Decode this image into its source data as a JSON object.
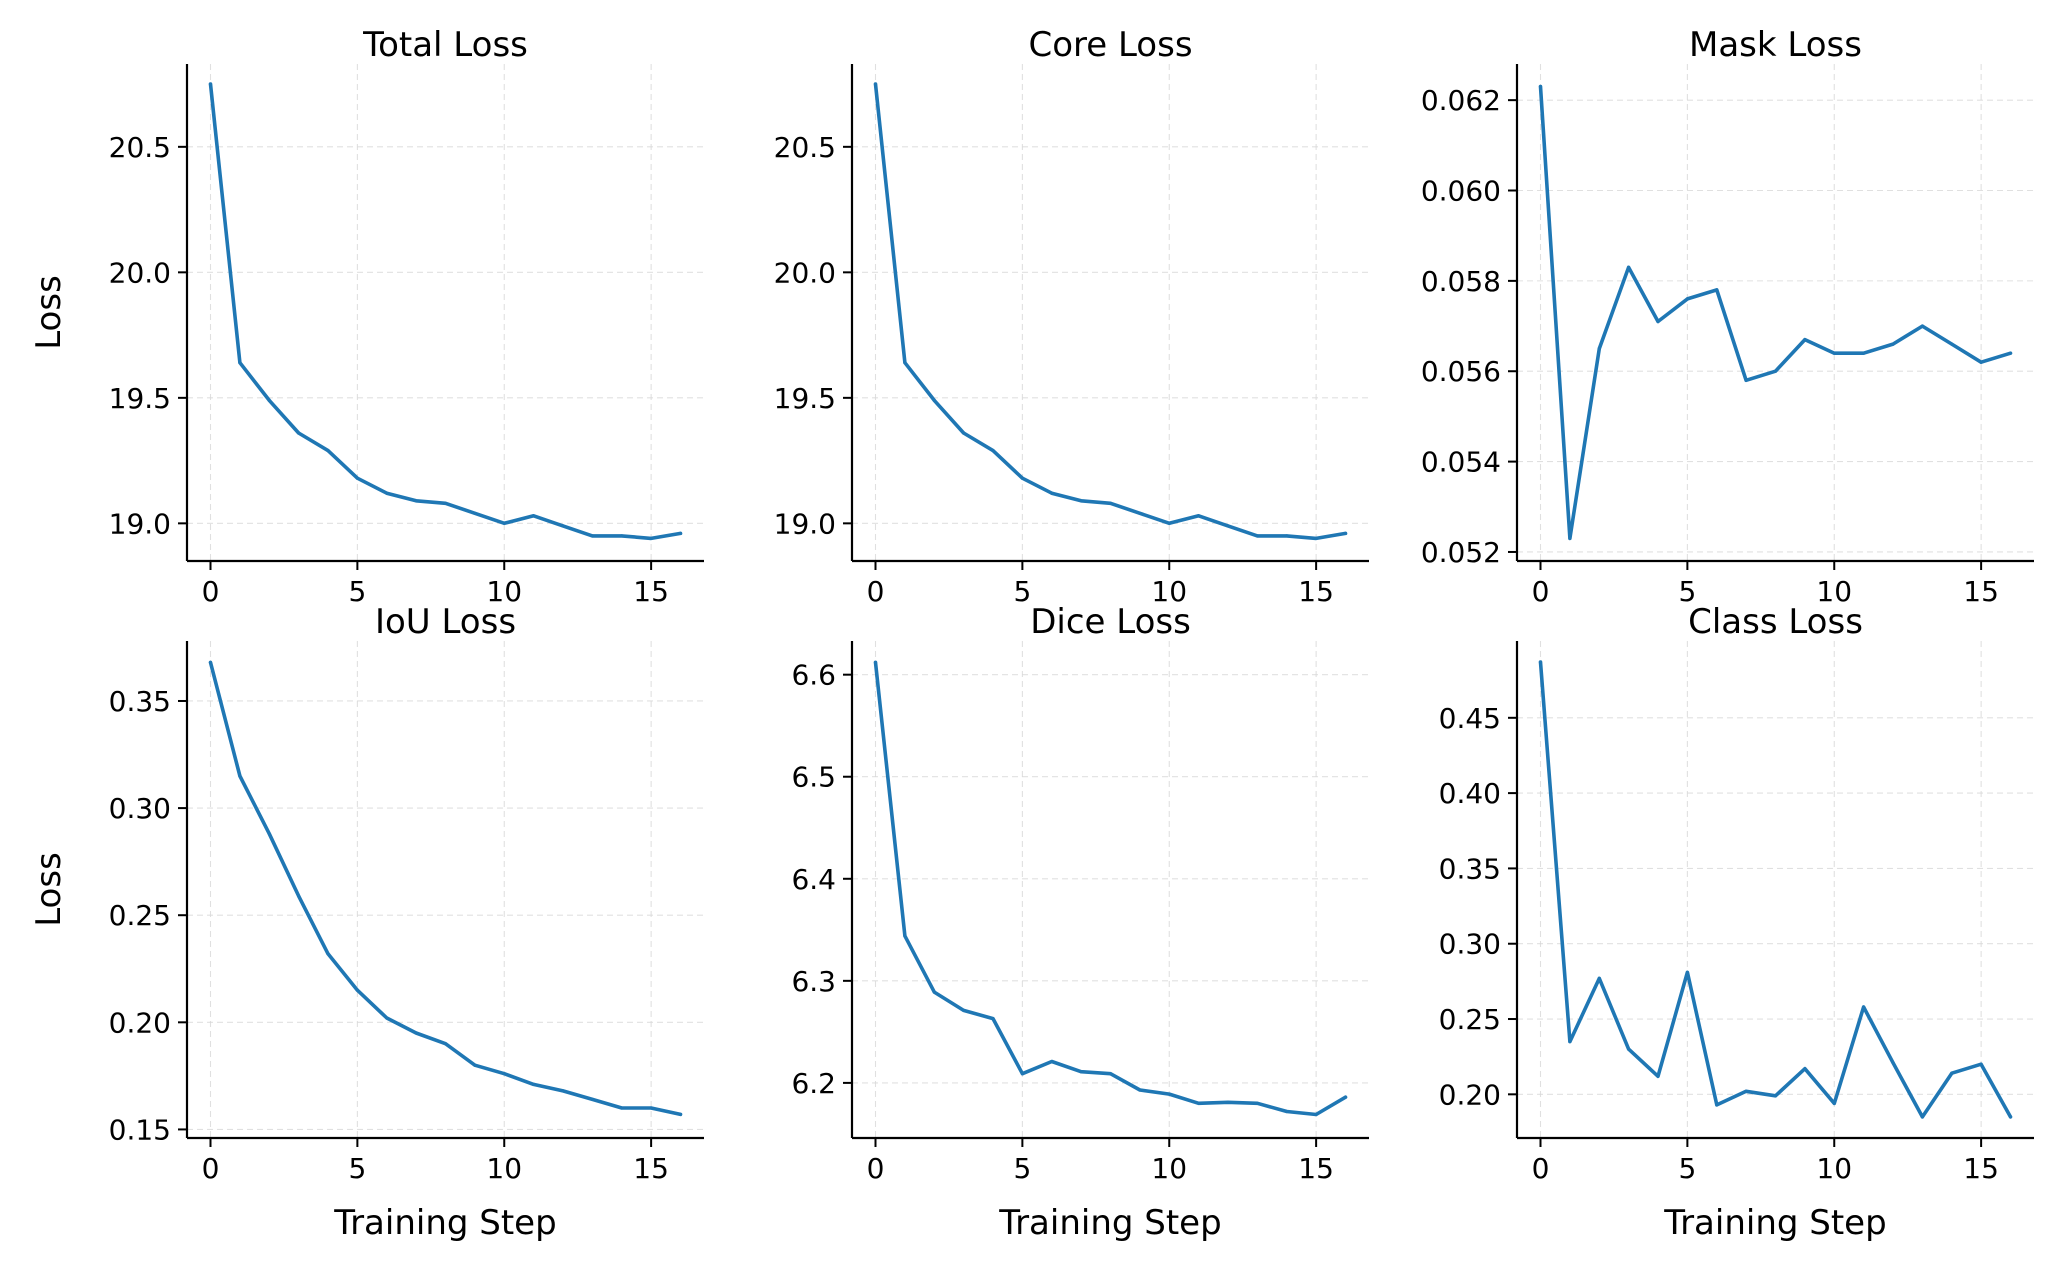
{
  "colors": {
    "line": "#1f77b4",
    "text": "#000000",
    "grid": "#d9d9d9"
  },
  "chart_data": [
    {
      "type": "line",
      "title": "Total Loss",
      "xlabel": "",
      "ylabel": "Loss",
      "x": [
        0,
        1,
        2,
        3,
        4,
        5,
        6,
        7,
        8,
        9,
        10,
        11,
        12,
        13,
        14,
        15,
        16
      ],
      "values": [
        20.75,
        19.64,
        19.49,
        19.36,
        19.29,
        19.18,
        19.12,
        19.09,
        19.08,
        19.04,
        19.0,
        19.03,
        18.99,
        18.95,
        18.95,
        18.94,
        18.96
      ],
      "xlim": [
        -0.8,
        16.8
      ],
      "ylim": [
        18.85,
        20.83
      ],
      "xticks": [
        0,
        5,
        10,
        15
      ],
      "xtick_labels": [
        "0",
        "5",
        "10",
        "15"
      ],
      "yticks": [
        19.0,
        19.5,
        20.0,
        20.5
      ],
      "ytick_labels": [
        "19.0",
        "19.5",
        "20.0",
        "20.5"
      ],
      "grid": true
    },
    {
      "type": "line",
      "title": "Core Loss",
      "xlabel": "",
      "ylabel": "",
      "x": [
        0,
        1,
        2,
        3,
        4,
        5,
        6,
        7,
        8,
        9,
        10,
        11,
        12,
        13,
        14,
        15,
        16
      ],
      "values": [
        20.75,
        19.64,
        19.49,
        19.36,
        19.29,
        19.18,
        19.12,
        19.09,
        19.08,
        19.04,
        19.0,
        19.03,
        18.99,
        18.95,
        18.95,
        18.94,
        18.96
      ],
      "xlim": [
        -0.8,
        16.8
      ],
      "ylim": [
        18.85,
        20.83
      ],
      "xticks": [
        0,
        5,
        10,
        15
      ],
      "xtick_labels": [
        "0",
        "5",
        "10",
        "15"
      ],
      "yticks": [
        19.0,
        19.5,
        20.0,
        20.5
      ],
      "ytick_labels": [
        "19.0",
        "19.5",
        "20.0",
        "20.5"
      ],
      "grid": true
    },
    {
      "type": "line",
      "title": "Mask Loss",
      "xlabel": "",
      "ylabel": "",
      "x": [
        0,
        1,
        2,
        3,
        4,
        5,
        6,
        7,
        8,
        9,
        10,
        11,
        12,
        13,
        14,
        15,
        16
      ],
      "values": [
        0.0623,
        0.0523,
        0.0565,
        0.0583,
        0.0571,
        0.0576,
        0.0578,
        0.0558,
        0.056,
        0.0567,
        0.0564,
        0.0564,
        0.0566,
        0.057,
        0.0566,
        0.0562,
        0.0564
      ],
      "xlim": [
        -0.8,
        16.8
      ],
      "ylim": [
        0.0518,
        0.0628
      ],
      "xticks": [
        0,
        5,
        10,
        15
      ],
      "xtick_labels": [
        "0",
        "5",
        "10",
        "15"
      ],
      "yticks": [
        0.052,
        0.054,
        0.056,
        0.058,
        0.06,
        0.062
      ],
      "ytick_labels": [
        "0.052",
        "0.054",
        "0.056",
        "0.058",
        "0.060",
        "0.062"
      ],
      "grid": true
    },
    {
      "type": "line",
      "title": "IoU Loss",
      "xlabel": "Training Step",
      "ylabel": "Loss",
      "x": [
        0,
        1,
        2,
        3,
        4,
        5,
        6,
        7,
        8,
        9,
        10,
        11,
        12,
        13,
        14,
        15,
        16
      ],
      "values": [
        0.368,
        0.315,
        0.288,
        0.259,
        0.232,
        0.215,
        0.202,
        0.195,
        0.19,
        0.18,
        0.176,
        0.171,
        0.168,
        0.164,
        0.16,
        0.16,
        0.157
      ],
      "xlim": [
        -0.8,
        16.8
      ],
      "ylim": [
        0.146,
        0.378
      ],
      "xticks": [
        0,
        5,
        10,
        15
      ],
      "xtick_labels": [
        "0",
        "5",
        "10",
        "15"
      ],
      "yticks": [
        0.15,
        0.2,
        0.25,
        0.3,
        0.35
      ],
      "ytick_labels": [
        "0.15",
        "0.20",
        "0.25",
        "0.30",
        "0.35"
      ],
      "grid": true
    },
    {
      "type": "line",
      "title": "Dice Loss",
      "xlabel": "Training Step",
      "ylabel": "",
      "x": [
        0,
        1,
        2,
        3,
        4,
        5,
        6,
        7,
        8,
        9,
        10,
        11,
        12,
        13,
        14,
        15,
        16
      ],
      "values": [
        6.612,
        6.344,
        6.289,
        6.271,
        6.263,
        6.209,
        6.221,
        6.211,
        6.209,
        6.193,
        6.189,
        6.18,
        6.181,
        6.18,
        6.172,
        6.169,
        6.186
      ],
      "xlim": [
        -0.8,
        16.8
      ],
      "ylim": [
        6.146,
        6.633
      ],
      "xticks": [
        0,
        5,
        10,
        15
      ],
      "xtick_labels": [
        "0",
        "5",
        "10",
        "15"
      ],
      "yticks": [
        6.2,
        6.3,
        6.4,
        6.5,
        6.6
      ],
      "ytick_labels": [
        "6.2",
        "6.3",
        "6.4",
        "6.5",
        "6.6"
      ],
      "grid": true
    },
    {
      "type": "line",
      "title": "Class Loss",
      "xlabel": "Training Step",
      "ylabel": "",
      "x": [
        0,
        1,
        2,
        3,
        4,
        5,
        6,
        7,
        8,
        9,
        10,
        11,
        12,
        13,
        14,
        15,
        16
      ],
      "values": [
        0.487,
        0.235,
        0.277,
        0.23,
        0.212,
        0.281,
        0.193,
        0.202,
        0.199,
        0.217,
        0.194,
        0.258,
        0.221,
        0.185,
        0.214,
        0.22,
        0.185
      ],
      "xlim": [
        -0.8,
        16.8
      ],
      "ylim": [
        0.171,
        0.501
      ],
      "xticks": [
        0,
        5,
        10,
        15
      ],
      "xtick_labels": [
        "0",
        "5",
        "10",
        "15"
      ],
      "yticks": [
        0.2,
        0.25,
        0.3,
        0.35,
        0.4,
        0.45
      ],
      "ytick_labels": [
        "0.20",
        "0.25",
        "0.30",
        "0.35",
        "0.40",
        "0.45"
      ],
      "grid": true
    }
  ]
}
